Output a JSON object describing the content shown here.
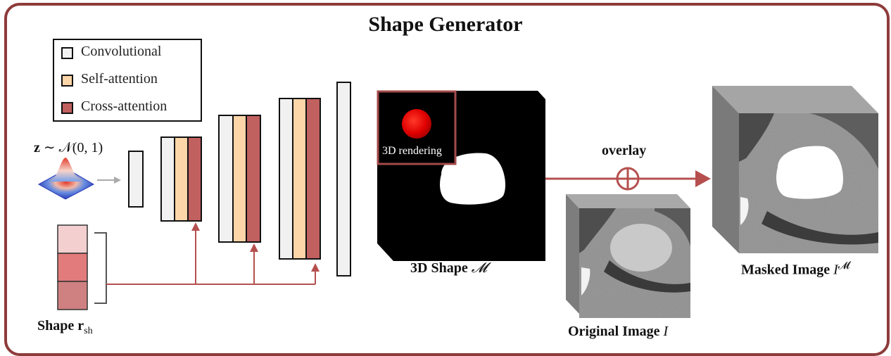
{
  "title": "Shape Generator",
  "legend": {
    "items": [
      {
        "label": "Convolutional",
        "color": "#f1f1f1"
      },
      {
        "label": "Self-attention",
        "color": "#fcd5a8"
      },
      {
        "label": "Cross-attention",
        "color": "#c0605f"
      }
    ]
  },
  "noise": {
    "prefix": "z",
    "distribution": "∼ 𝒩(0, 1)"
  },
  "shape_vector": {
    "label_prefix": "Shape ",
    "label_symbol": "r",
    "label_sub": "sh",
    "cell_colors": [
      "#f3cfcf",
      "#e27b7b",
      "#cf8080"
    ]
  },
  "rendering_label": "3D rendering",
  "shape_label": {
    "text": "3D Shape ",
    "symbol": "𝓜"
  },
  "overlay_label": "overlay",
  "original_label": {
    "text": "Original Image ",
    "symbol": "I"
  },
  "masked_label": {
    "text": "Masked Image ",
    "symbol": "I",
    "sup": "𝓜"
  },
  "colors": {
    "frame": "#8e3b3b",
    "arrow": "#b5504f",
    "inset_border": "#a44a4a",
    "render_blob": "#e00000"
  }
}
